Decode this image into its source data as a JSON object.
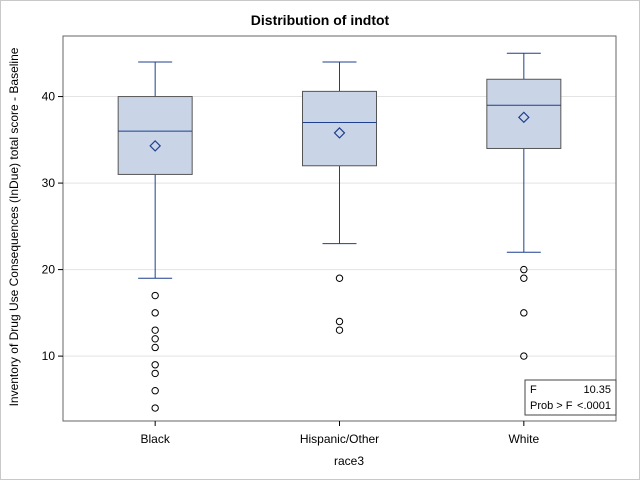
{
  "chart_data": {
    "type": "box",
    "title": "Distribution of indtot",
    "xlabel": "race3",
    "ylabel": "Inventory of Drug Use Consequences (InDue) total score - Baseline",
    "ylim": [
      2.5,
      47
    ],
    "yticks": [
      10,
      20,
      30,
      40
    ],
    "grid": true,
    "categories": [
      "Black",
      "Hispanic/Other",
      "White"
    ],
    "boxes": [
      {
        "category": "Black",
        "whisker_low": 19,
        "q1": 31,
        "median": 36,
        "q3": 40,
        "whisker_high": 44,
        "mean": 34.3,
        "outliers": [
          17,
          15,
          13,
          12,
          11,
          9,
          8,
          6,
          4
        ]
      },
      {
        "category": "Hispanic/Other",
        "whisker_low": 23,
        "q1": 32,
        "median": 37,
        "q3": 40.6,
        "whisker_high": 44,
        "mean": 35.8,
        "outliers": [
          19,
          14,
          13
        ]
      },
      {
        "category": "White",
        "whisker_low": 22,
        "q1": 34,
        "median": 39,
        "q3": 42,
        "whisker_high": 45,
        "mean": 37.6,
        "outliers": [
          20,
          19,
          15,
          10
        ]
      }
    ],
    "inset": {
      "placement": "bottom-right",
      "rows": [
        {
          "label": "F",
          "value": "10.35"
        },
        {
          "label": "Prob > F",
          "value": "<.0001"
        }
      ]
    },
    "colors": {
      "box_fill": "#c9d5e6",
      "box_stroke": "#1f3f8f",
      "grid": "#e3e3e3",
      "frame": "#666666"
    }
  }
}
